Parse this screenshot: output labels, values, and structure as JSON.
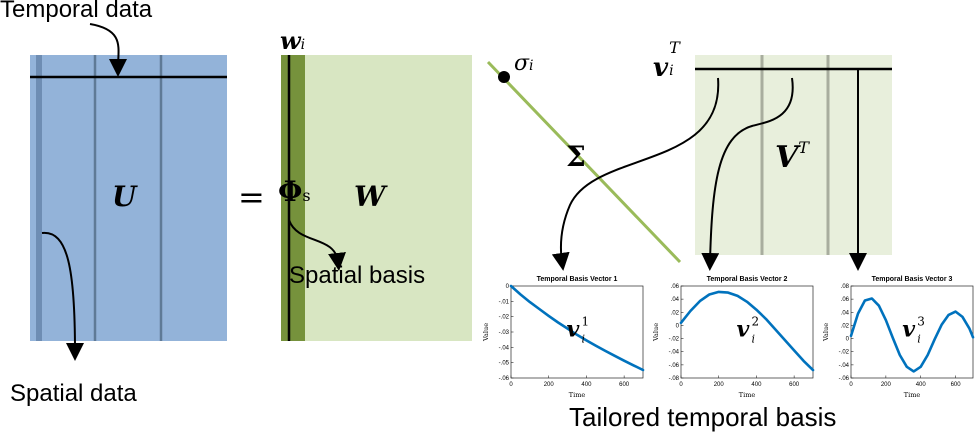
{
  "labels": {
    "temporal_data": "Temporal data",
    "spatial_data": "Spatial data",
    "spatial_basis": "Spatial basis",
    "tailored_temporal_basis": "Tailored temporal basis",
    "u_matrix": "U",
    "equals": "=",
    "phi": "Φ",
    "phi_sub": "s",
    "w_matrix": "W",
    "w_i": "w",
    "w_i_sub": "i",
    "sigma": "Σ",
    "sigma_i": "σ",
    "sigma_i_sub": "i",
    "vt_matrix": "V",
    "vt_matrix_sup": "T",
    "v_i_T": "v",
    "v_i_T_sup": "T",
    "v_i_T_sub": "i"
  },
  "colors": {
    "u_fill": "#93b3d9",
    "u_stripe": "#5f7a96",
    "w_fill": "#d8e6c2",
    "w_column": "#76923c",
    "sigma_line": "#9abb5a",
    "vt_fill": "#e8efdc",
    "vt_stripe": "#a8ad9e",
    "plot_line": "#0072bd"
  },
  "chart_data": [
    {
      "type": "line",
      "title": "Temporal Basis Vector 1",
      "xlabel": "Time",
      "ylabel": "Value",
      "annotation": "v_i^1",
      "annotation_base": "v",
      "annotation_sup": "1",
      "annotation_sub": "i",
      "xlim": [
        0,
        700
      ],
      "ylim": [
        -0.06,
        0
      ],
      "xticks": [
        0,
        200,
        400,
        600
      ],
      "yticks": [
        0,
        -0.01,
        -0.02,
        -0.03,
        -0.04,
        -0.05,
        -0.06
      ],
      "series": [
        {
          "x": [
            0,
            50,
            100,
            150,
            200,
            250,
            300,
            350,
            400,
            450,
            500,
            550,
            600,
            650,
            700
          ],
          "values": [
            0,
            -0.0055,
            -0.0105,
            -0.015,
            -0.0195,
            -0.0238,
            -0.0278,
            -0.0318,
            -0.0355,
            -0.039,
            -0.0423,
            -0.0455,
            -0.0487,
            -0.0518,
            -0.0548
          ]
        }
      ]
    },
    {
      "type": "line",
      "title": "Temporal Basis Vector 2",
      "xlabel": "Time",
      "ylabel": "Value",
      "annotation": "v_i^2",
      "annotation_base": "v",
      "annotation_sup": "2",
      "annotation_sub": "i",
      "xlim": [
        0,
        700
      ],
      "ylim": [
        -0.08,
        0.06
      ],
      "xticks": [
        0,
        200,
        400,
        600
      ],
      "yticks": [
        0.06,
        0.04,
        0.02,
        0,
        -0.02,
        -0.04,
        -0.06,
        -0.08
      ],
      "series": [
        {
          "x": [
            0,
            50,
            100,
            150,
            200,
            250,
            300,
            350,
            400,
            450,
            500,
            550,
            600,
            650,
            700
          ],
          "values": [
            0.004,
            0.022,
            0.037,
            0.047,
            0.051,
            0.05,
            0.045,
            0.036,
            0.024,
            0.01,
            -0.006,
            -0.022,
            -0.038,
            -0.054,
            -0.068
          ]
        }
      ]
    },
    {
      "type": "line",
      "title": "Temporal Basis Vector 3",
      "xlabel": "Time",
      "ylabel": "Value",
      "annotation": "v_i^3",
      "annotation_base": "v",
      "annotation_sup": "3",
      "annotation_sub": "i",
      "xlim": [
        0,
        700
      ],
      "ylim": [
        -0.06,
        0.08
      ],
      "xticks": [
        0,
        200,
        400,
        600
      ],
      "yticks": [
        0.08,
        0.06,
        0.04,
        0.02,
        0,
        -0.02,
        -0.04,
        -0.06
      ],
      "series": [
        {
          "x": [
            0,
            40,
            80,
            120,
            160,
            200,
            240,
            280,
            320,
            360,
            400,
            440,
            480,
            520,
            560,
            600,
            640,
            680,
            700
          ],
          "values": [
            0.004,
            0.038,
            0.058,
            0.061,
            0.05,
            0.028,
            0.001,
            -0.025,
            -0.043,
            -0.05,
            -0.043,
            -0.025,
            -0.001,
            0.021,
            0.036,
            0.041,
            0.033,
            0.015,
            0.002
          ]
        }
      ]
    }
  ]
}
